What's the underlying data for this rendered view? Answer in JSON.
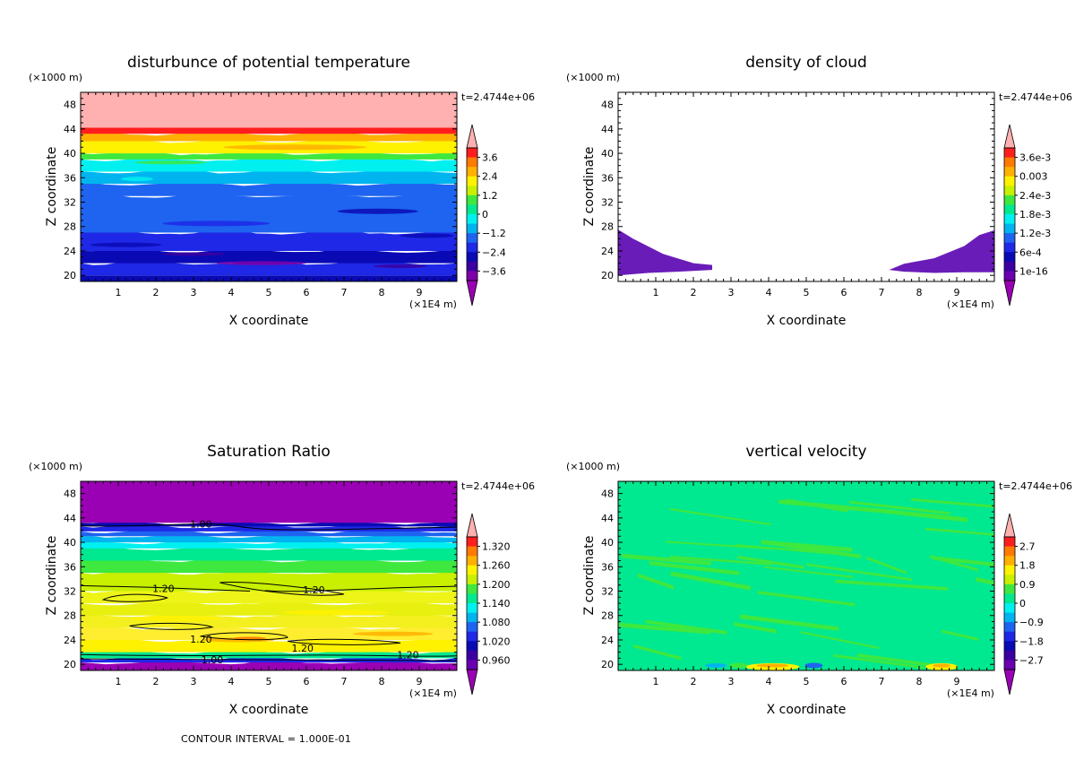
{
  "chart_data": [
    {
      "type": "heatmap",
      "title": "disturbunce of potential temperature",
      "xlabel": "X coordinate",
      "ylabel": "Z coordinate",
      "x_unit": "(×1E4 m)",
      "y_unit": "(×1000 m)",
      "time_label": "t=2.4744e+06",
      "x_ticks": [
        "1",
        "2",
        "3",
        "4",
        "5",
        "6",
        "7",
        "8",
        "9"
      ],
      "y_ticks": [
        "20",
        "24",
        "28",
        "32",
        "36",
        "40",
        "44",
        "48"
      ],
      "xlim": [
        0,
        10
      ],
      "ylim": [
        19,
        50
      ],
      "colorbar_labels": [
        "3.6",
        "2.4",
        "1.2",
        "0",
        "−1.2",
        "−2.4",
        "−3.6"
      ],
      "colorbar_colors": [
        "#ff1e1e",
        "#ff7a00",
        "#ffb000",
        "#fff200",
        "#c8f000",
        "#3ee83e",
        "#00e890",
        "#00f0f0",
        "#00b4f0",
        "#1e64f0",
        "#1e28e6",
        "#0a0ab4",
        "#3c00a0",
        "#7f00a8"
      ],
      "over_color": "#ffb0b0",
      "under_color": "#9a00b4",
      "bands": [
        {
          "z0": 19.0,
          "z1": 20.0,
          "color": "#0a0ab4"
        },
        {
          "z0": 20.0,
          "z1": 22.0,
          "color": "#1e28e6"
        },
        {
          "z0": 22.0,
          "z1": 24.0,
          "color": "#0a0ab4"
        },
        {
          "z0": 24.0,
          "z1": 27.0,
          "color": "#1e28e6"
        },
        {
          "z0": 27.0,
          "z1": 33.0,
          "color": "#1e64f0"
        },
        {
          "z0": 33.0,
          "z1": 35.0,
          "color": "#1e64f0"
        },
        {
          "z0": 35.0,
          "z1": 37.0,
          "color": "#00b4f0"
        },
        {
          "z0": 37.0,
          "z1": 39.0,
          "color": "#00f0f0"
        },
        {
          "z0": 39.0,
          "z1": 40.0,
          "color": "#3ee83e"
        },
        {
          "z0": 40.0,
          "z1": 42.0,
          "color": "#fff200"
        },
        {
          "z0": 42.0,
          "z1": 43.2,
          "color": "#ffb000"
        },
        {
          "z0": 43.2,
          "z1": 44.2,
          "color": "#ff1e1e"
        },
        {
          "z0": 44.2,
          "z1": 50.0,
          "color": "#ffb0b0"
        }
      ]
    },
    {
      "type": "heatmap",
      "title": "density of cloud",
      "xlabel": "X coordinate",
      "ylabel": "Z coordinate",
      "x_unit": "(×1E4 m)",
      "y_unit": "(×1000 m)",
      "time_label": "t=2.4744e+06",
      "x_ticks": [
        "1",
        "2",
        "3",
        "4",
        "5",
        "6",
        "7",
        "8",
        "9"
      ],
      "y_ticks": [
        "20",
        "24",
        "28",
        "32",
        "36",
        "40",
        "44",
        "48"
      ],
      "xlim": [
        0,
        10
      ],
      "ylim": [
        19,
        50
      ],
      "colorbar_labels": [
        "3.6e-3",
        "0.003",
        "2.4e-3",
        "1.8e-3",
        "1.2e-3",
        "6e-4",
        "1e-16"
      ],
      "colorbar_colors": [
        "#ff1e1e",
        "#ff7a00",
        "#ffb000",
        "#fff200",
        "#c8f000",
        "#3ee83e",
        "#00e890",
        "#00f0f0",
        "#00b4f0",
        "#1e64f0",
        "#1e28e6",
        "#0a0ab4",
        "#3c00a0",
        "#6a00b0"
      ],
      "over_color": "#ffb0b0",
      "under_color": "#9a00b4",
      "cloud_color": "#6a1cb8",
      "cloud_regions": [
        {
          "x": [
            0.0,
            0.0,
            0.4,
            1.2,
            2.0,
            2.5,
            2.5,
            1.6,
            0.8,
            0.0
          ],
          "z": [
            20.0,
            27.5,
            26.0,
            23.5,
            22.0,
            21.7,
            20.9,
            20.6,
            20.4,
            20.0
          ]
        },
        {
          "x": [
            7.2,
            7.6,
            8.4,
            9.2,
            9.6,
            10.0,
            10.0,
            9.2,
            8.4,
            7.6,
            7.2
          ],
          "z": [
            20.9,
            21.9,
            22.8,
            24.8,
            26.6,
            27.4,
            20.5,
            20.5,
            20.4,
            20.6,
            20.9
          ]
        }
      ]
    },
    {
      "type": "heatmap",
      "title": "Saturation Ratio",
      "xlabel": "X coordinate",
      "ylabel": "Z coordinate",
      "x_unit": "(×1E4 m)",
      "y_unit": "(×1000 m)",
      "time_label": "t=2.4744e+06",
      "x_ticks": [
        "1",
        "2",
        "3",
        "4",
        "5",
        "6",
        "7",
        "8",
        "9"
      ],
      "y_ticks": [
        "20",
        "24",
        "28",
        "32",
        "36",
        "40",
        "44",
        "48"
      ],
      "xlim": [
        0,
        10
      ],
      "ylim": [
        19,
        50
      ],
      "colorbar_labels": [
        "1.320",
        "1.260",
        "1.200",
        "1.140",
        "1.080",
        "1.020",
        "0.960"
      ],
      "colorbar_colors": [
        "#ff1e1e",
        "#ff7a00",
        "#ffb000",
        "#fff200",
        "#c8f000",
        "#3ee83e",
        "#00e890",
        "#00f0f0",
        "#00b4f0",
        "#1e64f0",
        "#1e28e6",
        "#0a0ab4",
        "#3c00a0",
        "#6a00b0"
      ],
      "over_color": "#ffb0b0",
      "under_color": "#9a00b4",
      "bands": [
        {
          "z0": 19.0,
          "z1": 20.3,
          "color": "#9a00b4"
        },
        {
          "z0": 20.3,
          "z1": 21.0,
          "color": "#1e28e6"
        },
        {
          "z0": 21.0,
          "z1": 22.0,
          "color": "#00e890"
        },
        {
          "z0": 22.0,
          "z1": 24.0,
          "color": "#fff200"
        },
        {
          "z0": 24.0,
          "z1": 26.0,
          "color": "#ffee30"
        },
        {
          "z0": 26.0,
          "z1": 28.0,
          "color": "#f4f020"
        },
        {
          "z0": 28.0,
          "z1": 30.0,
          "color": "#e8f010"
        },
        {
          "z0": 30.0,
          "z1": 32.0,
          "color": "#eef418"
        },
        {
          "z0": 32.0,
          "z1": 35.0,
          "color": "#c8f000"
        },
        {
          "z0": 35.0,
          "z1": 37.0,
          "color": "#3ee83e"
        },
        {
          "z0": 37.0,
          "z1": 39.0,
          "color": "#00e890"
        },
        {
          "z0": 39.0,
          "z1": 40.0,
          "color": "#00f0f0"
        },
        {
          "z0": 40.0,
          "z1": 41.0,
          "color": "#00b4f0"
        },
        {
          "z0": 41.0,
          "z1": 41.8,
          "color": "#1e64f0"
        },
        {
          "z0": 41.8,
          "z1": 42.6,
          "color": "#1e28e6"
        },
        {
          "z0": 42.6,
          "z1": 43.2,
          "color": "#0a0ab4"
        },
        {
          "z0": 43.2,
          "z1": 50.0,
          "color": "#9a00b4"
        }
      ],
      "contour_labels": [
        "1.00",
        "1.20",
        "1.20",
        "1.20",
        "1.20",
        "1.20",
        "1.00"
      ],
      "contour_interval": "CONTOUR INTERVAL = 1.000E-01"
    },
    {
      "type": "heatmap",
      "title": "vertical velocity",
      "xlabel": "X coordinate",
      "ylabel": "Z coordinate",
      "x_unit": "(×1E4 m)",
      "y_unit": "(×1000 m)",
      "time_label": "t=2.4744e+06",
      "x_ticks": [
        "1",
        "2",
        "3",
        "4",
        "5",
        "6",
        "7",
        "8",
        "9"
      ],
      "y_ticks": [
        "20",
        "24",
        "28",
        "32",
        "36",
        "40",
        "44",
        "48"
      ],
      "xlim": [
        0,
        10
      ],
      "ylim": [
        19,
        50
      ],
      "colorbar_labels": [
        "2.7",
        "1.8",
        "0.9",
        "0",
        "−0.9",
        "−1.8",
        "−2.7"
      ],
      "colorbar_colors": [
        "#ff1e1e",
        "#ff7a00",
        "#ffb000",
        "#fff200",
        "#c8f000",
        "#3ee83e",
        "#00e890",
        "#00f0f0",
        "#00b4f0",
        "#1e64f0",
        "#1e28e6",
        "#0a0ab4",
        "#3c00a0",
        "#6a00b0"
      ],
      "over_color": "#ffb0b0",
      "under_color": "#9a00b4",
      "background_color": "#00e890",
      "stripe_color": "#3ee83e"
    }
  ]
}
